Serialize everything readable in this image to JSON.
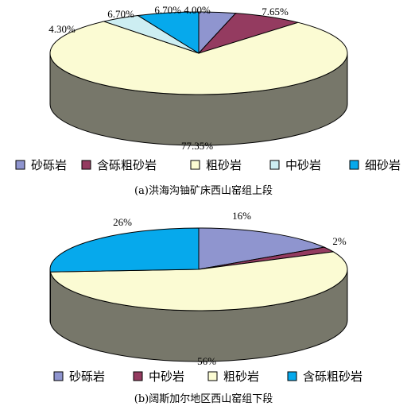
{
  "chart_data": [
    {
      "type": "pie",
      "caption": "(a)洪海沟铀矿床西山窑组上段",
      "series": [
        {
          "name": "砂砾岩",
          "value": 4.0,
          "label": "4.00%",
          "color": "#8f95cf"
        },
        {
          "name": "含砾粗砂岩",
          "value": 7.65,
          "label": "7.65%",
          "color": "#943b60"
        },
        {
          "name": "粗砂岩",
          "value": 77.35,
          "label": "77.35%",
          "color": "#fbfbd3"
        },
        {
          "name": "中砂岩",
          "value": 4.3,
          "label": "4.30%",
          "color": "#cdeef2"
        },
        {
          "name": "细砂岩",
          "value": 6.7,
          "label": "6.70%",
          "color": "#06a9ec"
        }
      ],
      "extra_labels": [
        "6.70%"
      ]
    },
    {
      "type": "pie",
      "caption": "(b)阔斯加尔地区西山窑组下段",
      "series": [
        {
          "name": "砂砾岩",
          "value": 16,
          "label": "16%",
          "color": "#8f95cf"
        },
        {
          "name": "中砂岩",
          "value": 2,
          "label": "2%",
          "color": "#943b60"
        },
        {
          "name": "粗砂岩",
          "value": 56,
          "label": "56%",
          "color": "#fbfbd3"
        },
        {
          "name": "含砾粗砂岩",
          "value": 26,
          "label": "26%",
          "color": "#06a9ec"
        }
      ],
      "extra_labels": []
    }
  ],
  "style": {
    "side_color": "#77776a",
    "outline": "#000000"
  }
}
